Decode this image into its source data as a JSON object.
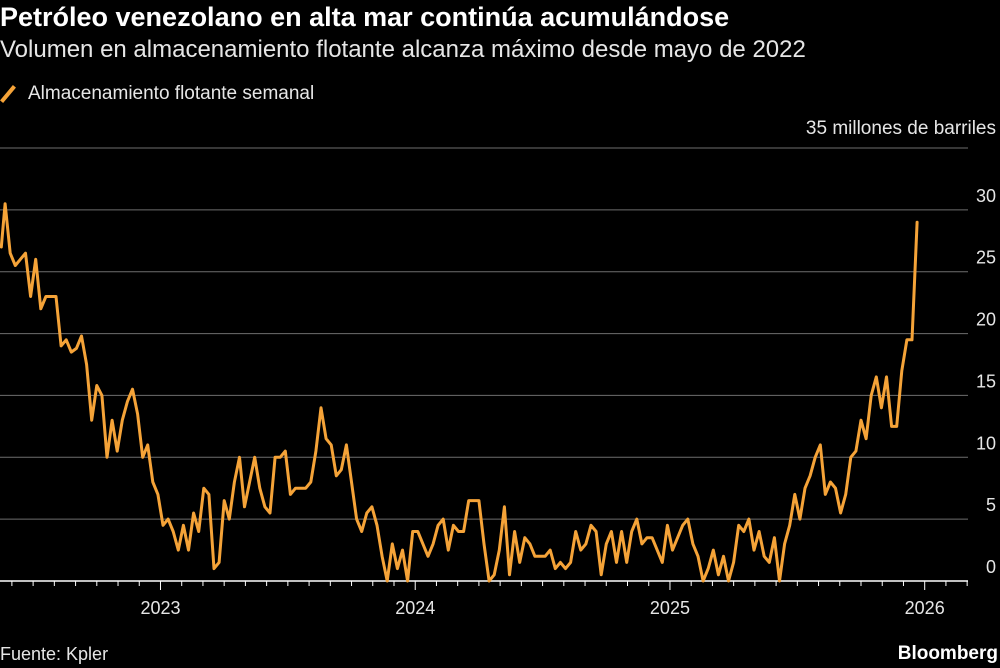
{
  "chart_data": {
    "type": "line",
    "title": "Petróleo venezolano en alta mar continúa acumulándose",
    "subtitle": "Volumen en almacenamiento flotante alcanza máximo desde mayo de 2022",
    "unit_label": "35 millones de barriles",
    "series": [
      {
        "name": "Almacenamiento flotante semanal",
        "color": "#f5a338",
        "points": [
          [
            2022.375,
            27.0
          ],
          [
            2022.39,
            30.5
          ],
          [
            2022.41,
            26.5
          ],
          [
            2022.43,
            25.5
          ],
          [
            2022.45,
            26.0
          ],
          [
            2022.47,
            26.5
          ],
          [
            2022.49,
            23.0
          ],
          [
            2022.51,
            26.0
          ],
          [
            2022.53,
            22.0
          ],
          [
            2022.55,
            23.0
          ],
          [
            2022.57,
            23.0
          ],
          [
            2022.59,
            23.0
          ],
          [
            2022.61,
            19.0
          ],
          [
            2022.63,
            19.5
          ],
          [
            2022.65,
            18.5
          ],
          [
            2022.67,
            18.8
          ],
          [
            2022.69,
            19.8
          ],
          [
            2022.71,
            17.5
          ],
          [
            2022.73,
            13.0
          ],
          [
            2022.75,
            15.8
          ],
          [
            2022.77,
            15.0
          ],
          [
            2022.79,
            10.0
          ],
          [
            2022.81,
            13.0
          ],
          [
            2022.83,
            10.5
          ],
          [
            2022.85,
            13.0
          ],
          [
            2022.87,
            14.5
          ],
          [
            2022.89,
            15.5
          ],
          [
            2022.91,
            13.5
          ],
          [
            2022.93,
            10.0
          ],
          [
            2022.95,
            11.0
          ],
          [
            2022.97,
            8.0
          ],
          [
            2022.99,
            7.0
          ],
          [
            2023.01,
            4.5
          ],
          [
            2023.03,
            5.0
          ],
          [
            2023.05,
            4.0
          ],
          [
            2023.07,
            2.5
          ],
          [
            2023.09,
            4.5
          ],
          [
            2023.11,
            2.5
          ],
          [
            2023.13,
            5.5
          ],
          [
            2023.15,
            4.0
          ],
          [
            2023.17,
            7.5
          ],
          [
            2023.19,
            7.0
          ],
          [
            2023.21,
            1.0
          ],
          [
            2023.23,
            1.5
          ],
          [
            2023.25,
            6.5
          ],
          [
            2023.27,
            5.0
          ],
          [
            2023.29,
            8.0
          ],
          [
            2023.31,
            10.0
          ],
          [
            2023.33,
            6.0
          ],
          [
            2023.35,
            8.0
          ],
          [
            2023.37,
            10.0
          ],
          [
            2023.39,
            7.5
          ],
          [
            2023.41,
            6.0
          ],
          [
            2023.43,
            5.5
          ],
          [
            2023.45,
            10.0
          ],
          [
            2023.47,
            10.0
          ],
          [
            2023.49,
            10.5
          ],
          [
            2023.51,
            7.0
          ],
          [
            2023.53,
            7.5
          ],
          [
            2023.55,
            7.5
          ],
          [
            2023.57,
            7.5
          ],
          [
            2023.59,
            8.0
          ],
          [
            2023.61,
            10.5
          ],
          [
            2023.63,
            14.0
          ],
          [
            2023.65,
            11.5
          ],
          [
            2023.67,
            11.0
          ],
          [
            2023.69,
            8.5
          ],
          [
            2023.71,
            9.0
          ],
          [
            2023.73,
            11.0
          ],
          [
            2023.75,
            8.0
          ],
          [
            2023.77,
            5.0
          ],
          [
            2023.79,
            4.0
          ],
          [
            2023.81,
            5.5
          ],
          [
            2023.83,
            6.0
          ],
          [
            2023.85,
            4.5
          ],
          [
            2023.87,
            2.0
          ],
          [
            2023.89,
            0.0
          ],
          [
            2023.91,
            3.0
          ],
          [
            2023.93,
            1.0
          ],
          [
            2023.95,
            2.5
          ],
          [
            2023.97,
            0.0
          ],
          [
            2023.99,
            4.0
          ],
          [
            2024.01,
            4.0
          ],
          [
            2024.03,
            3.0
          ],
          [
            2024.05,
            2.0
          ],
          [
            2024.07,
            3.0
          ],
          [
            2024.09,
            4.5
          ],
          [
            2024.11,
            5.0
          ],
          [
            2024.13,
            2.5
          ],
          [
            2024.15,
            4.5
          ],
          [
            2024.17,
            4.0
          ],
          [
            2024.19,
            4.0
          ],
          [
            2024.21,
            6.5
          ],
          [
            2024.23,
            6.5
          ],
          [
            2024.25,
            6.5
          ],
          [
            2024.27,
            3.0
          ],
          [
            2024.29,
            0.0
          ],
          [
            2024.31,
            0.5
          ],
          [
            2024.33,
            2.5
          ],
          [
            2024.35,
            6.0
          ],
          [
            2024.37,
            0.5
          ],
          [
            2024.39,
            4.0
          ],
          [
            2024.41,
            1.5
          ],
          [
            2024.43,
            3.5
          ],
          [
            2024.45,
            3.0
          ],
          [
            2024.47,
            2.0
          ],
          [
            2024.49,
            2.0
          ],
          [
            2024.51,
            2.0
          ],
          [
            2024.53,
            2.5
          ],
          [
            2024.55,
            1.0
          ],
          [
            2024.57,
            1.5
          ],
          [
            2024.59,
            1.0
          ],
          [
            2024.61,
            1.5
          ],
          [
            2024.63,
            4.0
          ],
          [
            2024.65,
            2.5
          ],
          [
            2024.67,
            3.0
          ],
          [
            2024.69,
            4.5
          ],
          [
            2024.71,
            4.0
          ],
          [
            2024.73,
            0.5
          ],
          [
            2024.75,
            3.0
          ],
          [
            2024.77,
            4.0
          ],
          [
            2024.79,
            1.5
          ],
          [
            2024.81,
            4.0
          ],
          [
            2024.83,
            1.5
          ],
          [
            2024.85,
            4.0
          ],
          [
            2024.87,
            5.0
          ],
          [
            2024.89,
            3.0
          ],
          [
            2024.91,
            3.5
          ],
          [
            2024.93,
            3.5
          ],
          [
            2024.95,
            2.5
          ],
          [
            2024.97,
            1.5
          ],
          [
            2024.99,
            4.5
          ],
          [
            2025.01,
            2.5
          ],
          [
            2025.03,
            3.5
          ],
          [
            2025.05,
            4.5
          ],
          [
            2025.07,
            5.0
          ],
          [
            2025.09,
            3.0
          ],
          [
            2025.11,
            2.0
          ],
          [
            2025.13,
            0.0
          ],
          [
            2025.15,
            1.0
          ],
          [
            2025.17,
            2.5
          ],
          [
            2025.19,
            0.5
          ],
          [
            2025.21,
            2.0
          ],
          [
            2025.23,
            0.0
          ],
          [
            2025.25,
            1.5
          ],
          [
            2025.27,
            4.5
          ],
          [
            2025.29,
            4.0
          ],
          [
            2025.31,
            5.0
          ],
          [
            2025.33,
            2.5
          ],
          [
            2025.35,
            4.0
          ],
          [
            2025.37,
            2.0
          ],
          [
            2025.39,
            1.5
          ],
          [
            2025.41,
            3.5
          ],
          [
            2025.43,
            0.0
          ],
          [
            2025.45,
            3.0
          ],
          [
            2025.47,
            4.5
          ],
          [
            2025.49,
            7.0
          ],
          [
            2025.51,
            5.0
          ],
          [
            2025.53,
            7.5
          ],
          [
            2025.55,
            8.5
          ],
          [
            2025.57,
            10.0
          ],
          [
            2025.59,
            11.0
          ],
          [
            2025.61,
            7.0
          ],
          [
            2025.63,
            8.0
          ],
          [
            2025.65,
            7.5
          ],
          [
            2025.67,
            5.5
          ],
          [
            2025.69,
            7.0
          ],
          [
            2025.71,
            10.0
          ],
          [
            2025.73,
            10.5
          ],
          [
            2025.75,
            13.0
          ],
          [
            2025.77,
            11.5
          ],
          [
            2025.79,
            15.0
          ],
          [
            2025.81,
            16.5
          ],
          [
            2025.83,
            14.0
          ],
          [
            2025.85,
            16.5
          ],
          [
            2025.87,
            12.5
          ],
          [
            2025.89,
            12.5
          ],
          [
            2025.91,
            17.0
          ],
          [
            2025.93,
            19.5
          ],
          [
            2025.95,
            19.5
          ],
          [
            2025.97,
            29.0
          ]
        ]
      }
    ],
    "x_ticks": [
      2023,
      2024,
      2025,
      2026
    ],
    "x_tick_labels": [
      "2023",
      "2024",
      "2025",
      "2026"
    ],
    "xlim": [
      2022.37,
      2026.17
    ],
    "y_ticks": [
      0,
      5,
      10,
      15,
      20,
      25,
      30,
      35
    ],
    "y_tick_labels": [
      "0",
      "5",
      "10",
      "15",
      "20",
      "25",
      "30",
      ""
    ],
    "ylim": [
      0,
      35
    ],
    "grid": true,
    "legend_position": "top-left",
    "source": "Fuente: Kpler",
    "brand": "Bloomberg"
  }
}
